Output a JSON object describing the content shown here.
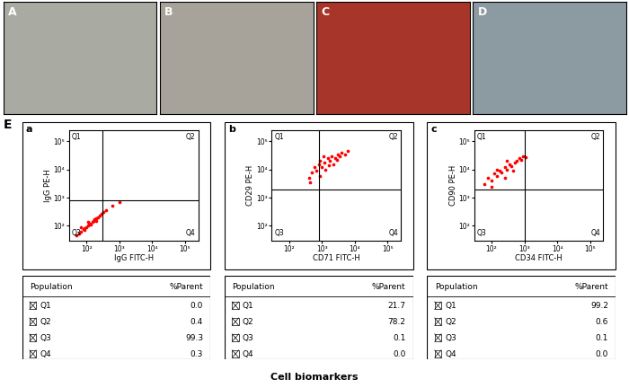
{
  "image_panels": [
    "A",
    "B",
    "C",
    "D"
  ],
  "section_label": "E",
  "caption": "Cell biomarkers",
  "chart_data": [
    {
      "type": "scatter",
      "panel": "a",
      "x_label": "IgG FITC-H",
      "y_label": "IgG PE-H",
      "log": true,
      "grid": false,
      "color": "#ff0000",
      "marker": "o",
      "xlim": [
        30,
        250000
      ],
      "ylim": [
        30,
        250000
      ],
      "xticks": [
        {
          "value": 100,
          "label": "10²"
        },
        {
          "value": 1000,
          "label": "10³"
        },
        {
          "value": 10000,
          "label": "10⁴"
        },
        {
          "value": 100000,
          "label": "10⁵"
        }
      ],
      "yticks": [
        {
          "value": 100,
          "label": "10²"
        },
        {
          "value": 1000,
          "label": "10³"
        },
        {
          "value": 10000,
          "label": "10⁴"
        },
        {
          "value": 100000,
          "label": "10⁵"
        }
      ],
      "gate": [
        300,
        800
      ],
      "x": [
        50,
        60,
        70,
        80,
        90,
        100,
        110,
        120,
        130,
        150,
        160,
        180,
        200,
        220,
        250,
        280,
        320,
        400,
        600,
        1000,
        70,
        90,
        140,
        110,
        200
      ],
      "y": [
        45,
        55,
        60,
        75,
        85,
        90,
        105,
        110,
        120,
        140,
        150,
        170,
        190,
        200,
        230,
        260,
        300,
        350,
        500,
        700,
        90,
        70,
        110,
        140,
        150
      ],
      "table": {
        "columns": [
          "Population",
          "%Parent"
        ],
        "rows": [
          [
            "Q1",
            0.0
          ],
          [
            "Q2",
            0.4
          ],
          [
            "Q3",
            99.3
          ],
          [
            "Q4",
            0.3
          ]
        ]
      }
    },
    {
      "type": "scatter",
      "panel": "b",
      "x_label": "CD71 FITC-H",
      "y_label": "CD29 PE-H",
      "log": true,
      "grid": false,
      "color": "#ff0000",
      "marker": "o",
      "xlim": [
        30,
        250000
      ],
      "ylim": [
        30,
        250000
      ],
      "xticks": [
        {
          "value": 100,
          "label": "10²"
        },
        {
          "value": 1000,
          "label": "10³"
        },
        {
          "value": 10000,
          "label": "10⁴"
        },
        {
          "value": 100000,
          "label": "10⁵"
        }
      ],
      "yticks": [
        {
          "value": 100,
          "label": "10²"
        },
        {
          "value": 1000,
          "label": "10³"
        },
        {
          "value": 10000,
          "label": "10⁴"
        },
        {
          "value": 100000,
          "label": "10⁵"
        }
      ],
      "gate": [
        800,
        2000
      ],
      "x": [
        400,
        500,
        600,
        700,
        800,
        900,
        1000,
        1200,
        1500,
        1800,
        2000,
        2500,
        3000,
        3500,
        4000,
        5000,
        6000,
        1300,
        1100,
        2200,
        450,
        850,
        1600,
        2800
      ],
      "y": [
        5000,
        8000,
        12000,
        9000,
        15000,
        20000,
        12000,
        18000,
        25000,
        20000,
        30000,
        25000,
        35000,
        30000,
        40000,
        35000,
        45000,
        10000,
        30000,
        15000,
        3500,
        6000,
        14000,
        22000
      ],
      "table": {
        "columns": [
          "Population",
          "%Parent"
        ],
        "rows": [
          [
            "Q1",
            21.7
          ],
          [
            "Q2",
            78.2
          ],
          [
            "Q3",
            0.1
          ],
          [
            "Q4",
            0.0
          ]
        ]
      }
    },
    {
      "type": "scatter",
      "panel": "c",
      "x_label": "CD34 FITC-H",
      "y_label": "CD90 PE-H",
      "log": true,
      "grid": false,
      "color": "#ff0000",
      "marker": "o",
      "xlim": [
        30,
        250000
      ],
      "ylim": [
        30,
        250000
      ],
      "xticks": [
        {
          "value": 100,
          "label": "10²"
        },
        {
          "value": 1000,
          "label": "10³"
        },
        {
          "value": 10000,
          "label": "10⁴"
        },
        {
          "value": 100000,
          "label": "10⁵"
        }
      ],
      "yticks": [
        {
          "value": 100,
          "label": "10²"
        },
        {
          "value": 1000,
          "label": "10³"
        },
        {
          "value": 10000,
          "label": "10⁴"
        },
        {
          "value": 100000,
          "label": "10⁵"
        }
      ],
      "gate": [
        1000,
        2000
      ],
      "x": [
        60,
        80,
        100,
        120,
        150,
        180,
        200,
        250,
        300,
        350,
        400,
        500,
        600,
        700,
        800,
        900,
        150,
        250,
        450,
        300,
        1100,
        100
      ],
      "y": [
        3000,
        5000,
        4000,
        7000,
        6000,
        9000,
        8000,
        12000,
        10000,
        15000,
        13000,
        18000,
        20000,
        25000,
        22000,
        30000,
        10000,
        5000,
        9000,
        20000,
        28000,
        2500
      ],
      "table": {
        "columns": [
          "Population",
          "%Parent"
        ],
        "rows": [
          [
            "Q1",
            99.2
          ],
          [
            "Q2",
            0.6
          ],
          [
            "Q3",
            0.1
          ],
          [
            "Q4",
            0.0
          ]
        ]
      }
    }
  ]
}
